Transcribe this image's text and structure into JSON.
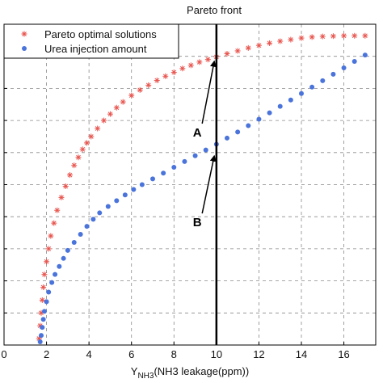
{
  "chart_data": {
    "type": "scatter",
    "title": "Pareto front",
    "xlabel_main": "Y",
    "xlabel_sub": "NH3",
    "xlabel_rest": "(NH3 leakage(ppm))",
    "xlim": [
      0,
      17.5
    ],
    "xticks": [
      "0",
      "2",
      "4",
      "6",
      "8",
      "10",
      "12",
      "14",
      "16"
    ],
    "ylim": [
      0,
      10
    ],
    "grid": true,
    "legend_position": "top-left",
    "vline_x": 10,
    "series": [
      {
        "name": "Pareto optimal solutions",
        "marker": "star",
        "color": "#e8554f",
        "x": [
          1.65,
          1.7,
          1.75,
          1.8,
          1.85,
          1.9,
          2.0,
          2.1,
          2.2,
          2.35,
          2.5,
          2.7,
          2.9,
          3.1,
          3.3,
          3.5,
          3.7,
          3.9,
          4.1,
          4.4,
          4.7,
          5.0,
          5.3,
          5.6,
          6.0,
          6.4,
          6.8,
          7.2,
          7.6,
          8.0,
          8.4,
          8.8,
          9.2,
          9.6,
          10.0,
          10.5,
          11.0,
          11.5,
          12.0,
          12.5,
          13.0,
          13.5,
          14.0,
          14.5,
          15.0,
          15.5,
          16.0,
          16.5,
          17.0
        ],
        "y": [
          0.2,
          0.6,
          1.0,
          1.4,
          1.8,
          2.2,
          2.6,
          3.0,
          3.4,
          3.8,
          4.2,
          4.6,
          4.95,
          5.3,
          5.6,
          5.85,
          6.1,
          6.3,
          6.5,
          6.75,
          7.0,
          7.2,
          7.4,
          7.58,
          7.78,
          7.95,
          8.1,
          8.25,
          8.38,
          8.5,
          8.62,
          8.72,
          8.82,
          8.9,
          8.98,
          9.08,
          9.17,
          9.26,
          9.34,
          9.41,
          9.47,
          9.52,
          9.57,
          9.6,
          9.62,
          9.63,
          9.64,
          9.64,
          9.64
        ]
      },
      {
        "name": "Urea injection amount",
        "marker": "dot",
        "color": "#4a74db",
        "x": [
          1.7,
          1.75,
          1.8,
          1.85,
          1.9,
          2.0,
          2.1,
          2.25,
          2.4,
          2.6,
          2.8,
          3.0,
          3.3,
          3.6,
          3.9,
          4.2,
          4.5,
          4.9,
          5.3,
          5.7,
          6.1,
          6.5,
          7.0,
          7.5,
          8.0,
          8.5,
          9.0,
          9.5,
          10.0,
          10.5,
          11.0,
          11.5,
          12.0,
          12.5,
          13.0,
          13.5,
          14.0,
          14.5,
          15.0,
          15.5,
          16.0,
          16.5,
          17.0
        ],
        "y": [
          0.1,
          0.3,
          0.55,
          0.8,
          1.05,
          1.35,
          1.65,
          1.95,
          2.2,
          2.45,
          2.7,
          2.95,
          3.2,
          3.45,
          3.7,
          3.92,
          4.12,
          4.32,
          4.5,
          4.68,
          4.85,
          5.0,
          5.18,
          5.36,
          5.54,
          5.72,
          5.9,
          6.08,
          6.26,
          6.45,
          6.64,
          6.84,
          7.04,
          7.24,
          7.44,
          7.64,
          7.84,
          8.04,
          8.24,
          8.44,
          8.64,
          8.84,
          9.04
        ]
      }
    ],
    "annotations": [
      {
        "label": "A",
        "text_x": 9.1,
        "text_y": 6.5,
        "arrow_x": 9.9,
        "arrow_y": 8.85
      },
      {
        "label": "B",
        "text_x": 9.1,
        "text_y": 3.7,
        "arrow_x": 9.9,
        "arrow_y": 5.9
      }
    ]
  }
}
